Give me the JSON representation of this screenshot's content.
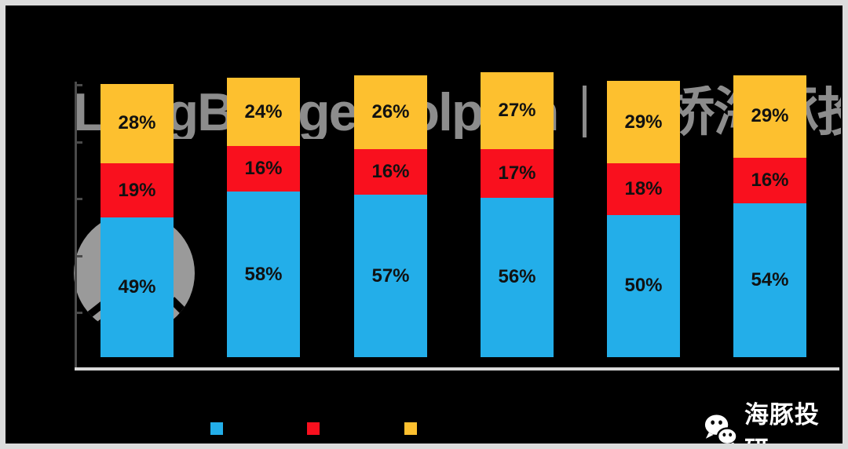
{
  "frame": {
    "background_color": "#000000",
    "border_color": "#dcdcdc"
  },
  "watermark": {
    "text": "LongBridge Dolphin｜长桥海豚投研",
    "color": "#8c8c8c",
    "logo_circle_color": "#9a9a9a"
  },
  "footer": {
    "brand": "海豚投研",
    "icon": "wechat-logo-icon",
    "text_color": "#ffffff"
  },
  "chart_data": {
    "type": "bar",
    "stacked": true,
    "orientation": "vertical",
    "categories": [
      "",
      "",
      "",
      "",
      "",
      ""
    ],
    "series": [
      {
        "name": "",
        "color": "#23AEE9",
        "values": [
          49,
          58,
          57,
          56,
          50,
          54
        ]
      },
      {
        "name": "",
        "color": "#F9101E",
        "values": [
          19,
          16,
          16,
          17,
          18,
          16
        ]
      },
      {
        "name": "",
        "color": "#FDC02F",
        "values": [
          28,
          24,
          26,
          27,
          29,
          29
        ]
      }
    ],
    "data_label_suffix": "%",
    "data_label_color": "#111111",
    "ylim": [
      0,
      100
    ],
    "y_axis": {
      "visible": true,
      "tick_interval_pct": 20,
      "tick_labels_visible": false
    },
    "x_axis": {
      "labels_visible": false
    },
    "legend": {
      "position": "bottom",
      "labels_visible": false
    }
  }
}
